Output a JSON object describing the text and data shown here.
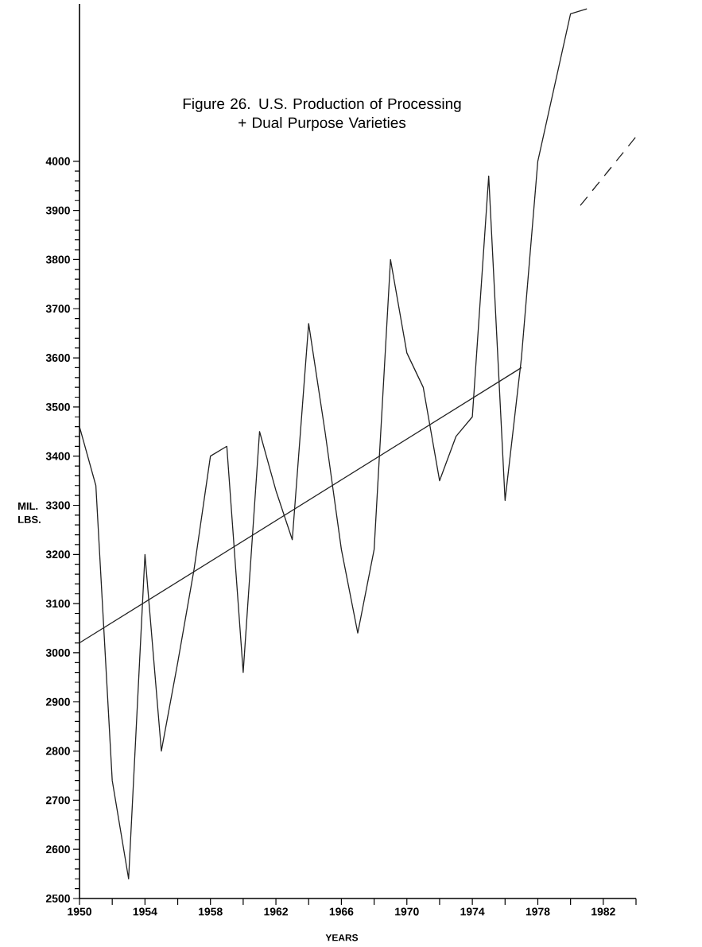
{
  "chart_data": {
    "type": "line",
    "title": "Figure 26.  U.S. Production of Processing\n+ Dual Purpose Varieties",
    "xlabel": "YEARS",
    "ylabel": "MIL.\nLBS.",
    "xlim": [
      1950,
      1984
    ],
    "xticks": [
      1950,
      {
        "value": 1952,
        "label": null
      },
      1954,
      {
        "value": 1956,
        "label": null
      },
      1958,
      {
        "value": 1960,
        "label": null
      },
      1962,
      {
        "value": 1964,
        "label": null
      },
      1966,
      {
        "value": 1968,
        "label": null
      },
      1970,
      {
        "value": 1972,
        "label": null
      },
      1974,
      {
        "value": 1976,
        "label": null
      },
      1978,
      {
        "value": 1980,
        "label": null
      },
      1982,
      {
        "value": 1984,
        "label": null
      }
    ],
    "ylim": [
      2500,
      4320
    ],
    "yticks": [
      2500,
      2600,
      2700,
      2800,
      2900,
      3000,
      3100,
      3200,
      3300,
      3400,
      3500,
      3600,
      3700,
      3800,
      3900,
      4000
    ],
    "grid": false,
    "marker": "none",
    "series": [
      {
        "color": "#222222",
        "line_style": "solid",
        "x": [
          1950,
          1951,
          1952,
          1953,
          1954,
          1955,
          1956,
          1957,
          1958,
          1959,
          1960,
          1961,
          1962,
          1963,
          1964,
          1965,
          1966,
          1967,
          1968,
          1969,
          1970,
          1971,
          1972,
          1973,
          1974,
          1975,
          1976,
          1977,
          1978,
          1980,
          1981
        ],
        "values": [
          3460,
          3340,
          2740,
          2540,
          3200,
          2800,
          2980,
          3170,
          3400,
          3420,
          2960,
          3450,
          3330,
          3230,
          3670,
          3450,
          3210,
          3040,
          3210,
          3800,
          3610,
          3540,
          3350,
          3440,
          3480,
          3970,
          3310,
          3600,
          4000,
          4300,
          4310
        ]
      },
      {
        "color": "#222222",
        "line_style": "solid",
        "x": [
          1950,
          1977
        ],
        "values": [
          3020,
          3580
        ]
      },
      {
        "color": "#222222",
        "line_style": "dashed",
        "x": [
          1980.6,
          1984
        ],
        "values": [
          3910,
          4050
        ]
      }
    ]
  }
}
